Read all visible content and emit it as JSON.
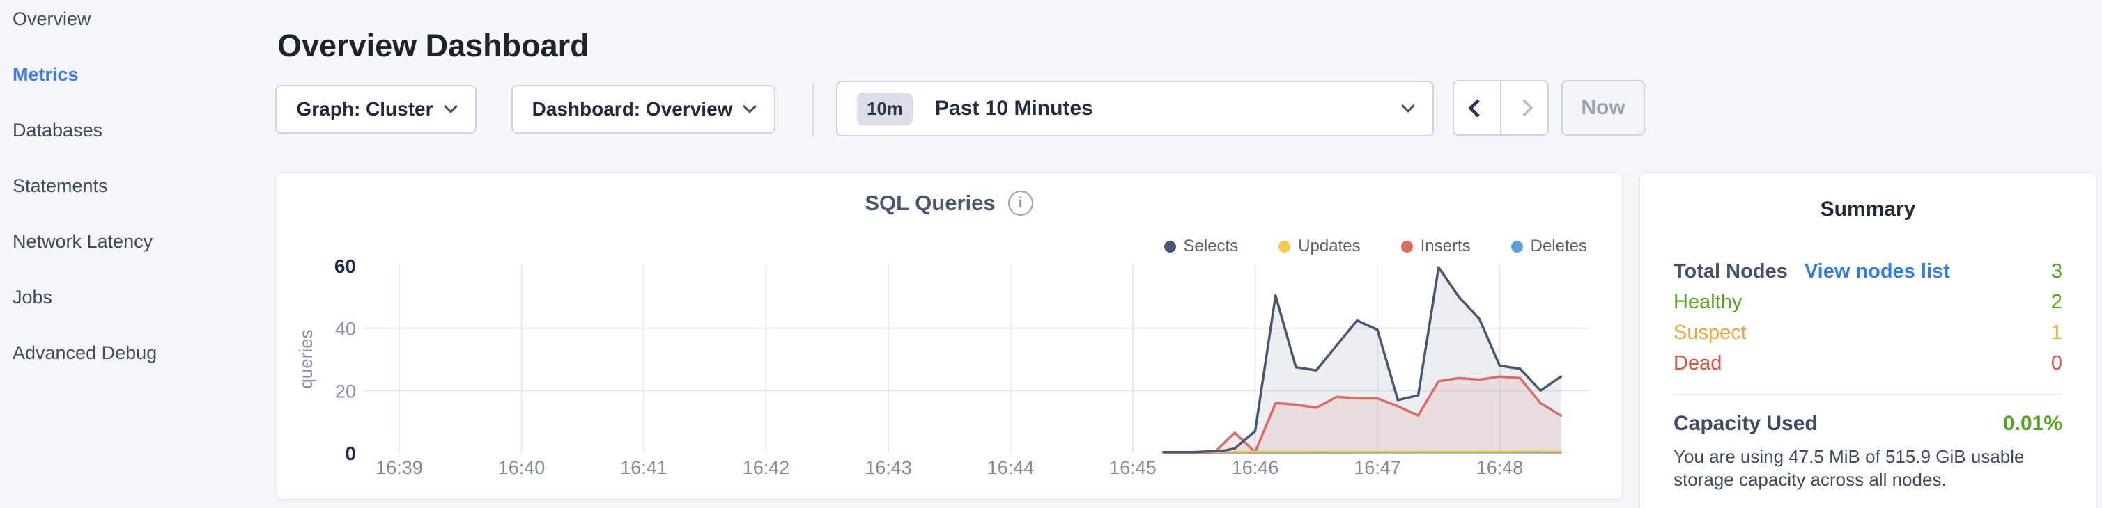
{
  "sidebar": {
    "items": [
      {
        "label": "Overview",
        "active": false
      },
      {
        "label": "Metrics",
        "active": true
      },
      {
        "label": "Databases",
        "active": false
      },
      {
        "label": "Statements",
        "active": false
      },
      {
        "label": "Network Latency",
        "active": false
      },
      {
        "label": "Jobs",
        "active": false
      },
      {
        "label": "Advanced Debug",
        "active": false
      }
    ]
  },
  "header": {
    "title": "Overview Dashboard"
  },
  "toolbar": {
    "graph_dropdown": "Graph: Cluster",
    "dashboard_dropdown": "Dashboard: Overview",
    "range_badge": "10m",
    "range_label": "Past 10 Minutes",
    "prev_arrow": "chevron-left",
    "next_arrow": "chevron-right",
    "now_button": "Now"
  },
  "chart": {
    "title": "SQL Queries",
    "info_icon": "i"
  },
  "chart_data": {
    "type": "area",
    "title": "SQL Queries",
    "ylabel": "queries",
    "ylim": [
      0,
      60
    ],
    "yticks": [
      0,
      20,
      40,
      60
    ],
    "x_ticks": [
      "16:39",
      "16:40",
      "16:41",
      "16:42",
      "16:43",
      "16:44",
      "16:45",
      "16:46",
      "16:47",
      "16:48"
    ],
    "grid": true,
    "legend_position": "top-right",
    "series": [
      {
        "name": "Selects",
        "color": "#475872",
        "fill": "rgba(71,88,114,0.10)",
        "points": [
          [
            "16:45:15",
            0.3
          ],
          [
            "16:45:30",
            0.3
          ],
          [
            "16:45:45",
            0.8
          ],
          [
            "16:45:50",
            1.5
          ],
          [
            "16:46:00",
            7
          ],
          [
            "16:46:10",
            50.5
          ],
          [
            "16:46:20",
            27.5
          ],
          [
            "16:46:30",
            26.5
          ],
          [
            "16:46:40",
            34.5
          ],
          [
            "16:46:50",
            42.5
          ],
          [
            "16:47:00",
            39.5
          ],
          [
            "16:47:10",
            17
          ],
          [
            "16:47:20",
            18.5
          ],
          [
            "16:47:30",
            59.5
          ],
          [
            "16:47:40",
            50
          ],
          [
            "16:47:50",
            43
          ],
          [
            "16:48:00",
            28
          ],
          [
            "16:48:10",
            27
          ],
          [
            "16:48:20",
            20
          ],
          [
            "16:48:30",
            24.5
          ]
        ]
      },
      {
        "name": "Updates",
        "color": "#f6cb45",
        "fill": "none",
        "points": [
          [
            "16:45:15",
            0.4
          ],
          [
            "16:48:30",
            0.5
          ]
        ]
      },
      {
        "name": "Inserts",
        "color": "#dd6a65",
        "fill": "rgba(221,106,101,0.13)",
        "points": [
          [
            "16:45:15",
            0.2
          ],
          [
            "16:45:40",
            0.2
          ],
          [
            "16:45:50",
            6.5
          ],
          [
            "16:46:00",
            0.3
          ],
          [
            "16:46:10",
            16
          ],
          [
            "16:46:20",
            15.5
          ],
          [
            "16:46:30",
            14.5
          ],
          [
            "16:46:40",
            18
          ],
          [
            "16:46:50",
            17.5
          ],
          [
            "16:47:00",
            17.5
          ],
          [
            "16:47:10",
            15
          ],
          [
            "16:47:20",
            12
          ],
          [
            "16:47:30",
            23
          ],
          [
            "16:47:40",
            24
          ],
          [
            "16:47:50",
            23.5
          ],
          [
            "16:48:00",
            24.5
          ],
          [
            "16:48:10",
            24
          ],
          [
            "16:48:20",
            16
          ],
          [
            "16:48:30",
            12
          ]
        ]
      },
      {
        "name": "Deletes",
        "color": "#5ba0d7",
        "fill": "none",
        "points": [
          [
            "16:45:15",
            0.15
          ],
          [
            "16:48:30",
            0.2
          ]
        ]
      }
    ]
  },
  "summary": {
    "title": "Summary",
    "total_nodes_label": "Total Nodes",
    "view_nodes_link": "View nodes list",
    "total_nodes_value": "3",
    "rows": [
      {
        "label": "Healthy",
        "value": "2",
        "color": "#55a31f"
      },
      {
        "label": "Suspect",
        "value": "1",
        "color": "#f2a33c"
      },
      {
        "label": "Dead",
        "value": "0",
        "color": "#e6493d"
      }
    ],
    "capacity_label": "Capacity Used",
    "capacity_value": "0.01%",
    "capacity_caption": "You are using 47.5 MiB of 515.9 GiB usable storage capacity across all nodes."
  },
  "colors": {
    "page_bg": "#f4f6fa",
    "active_nav": "#3b7cf2",
    "link_blue": "#2f7bf0",
    "healthy_green": "#55a31f",
    "suspect_orange": "#f2a33c",
    "dead_red": "#e6493d",
    "selects": "#475872",
    "updates": "#f6cb45",
    "inserts": "#dd6a65",
    "deletes": "#5ba0d7"
  }
}
